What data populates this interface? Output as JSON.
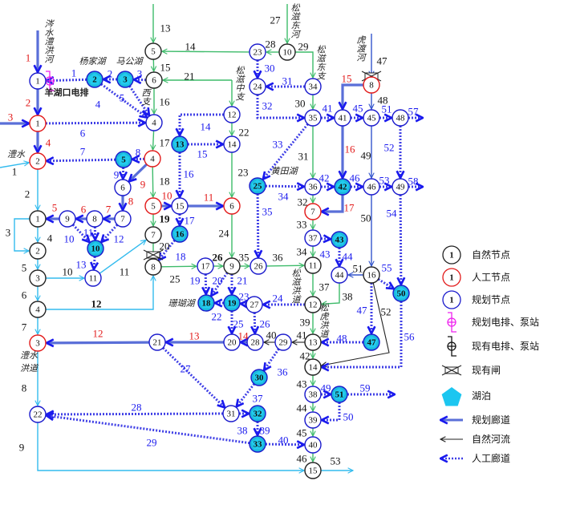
{
  "palette": {
    "red": "#e21a1a",
    "blue": "#1a1aee",
    "black": "#111111",
    "lake_fill": "#1cb8dc"
  },
  "styles": {
    "planned": {
      "color": "#5a6fd8",
      "meaning": "规划廊道"
    },
    "artificial": {
      "color": "#4040e6",
      "meaning": "人工廊道"
    },
    "green": {
      "color": "#3dbb6a",
      "meaning": "自然河流"
    },
    "cyan": {
      "color": "#33bbee",
      "meaning": "自然河流"
    },
    "black": {
      "color": "#222222",
      "meaning": "自然河流"
    },
    "darkblue": {
      "color": "#3355cc",
      "meaning": "自然河流"
    }
  },
  "node_kinds": {
    "natural": "#222222",
    "artificial": "#e21a1a",
    "planned": "#1a1acc"
  },
  "nodes": [
    {
      "label": "1",
      "kind": "planned"
    },
    {
      "label": "1",
      "kind": "artificial"
    },
    {
      "label": "2",
      "kind": "artificial"
    },
    {
      "label": "1",
      "kind": "natural"
    },
    {
      "label": "2",
      "kind": "natural"
    },
    {
      "label": "3",
      "kind": "natural"
    },
    {
      "label": "4",
      "kind": "natural"
    },
    {
      "label": "3",
      "kind": "artificial"
    },
    {
      "label": "22",
      "kind": "planned"
    },
    {
      "label": "2",
      "kind": "planned",
      "lake": true
    },
    {
      "label": "3",
      "kind": "planned",
      "lake": true
    },
    {
      "label": "5",
      "kind": "natural"
    },
    {
      "label": "6",
      "kind": "natural"
    },
    {
      "label": "4",
      "kind": "planned"
    },
    {
      "label": "4",
      "kind": "artificial"
    },
    {
      "label": "5",
      "kind": "planned",
      "lake": true
    },
    {
      "label": "6",
      "kind": "planned"
    },
    {
      "label": "7",
      "kind": "planned"
    },
    {
      "label": "8",
      "kind": "planned"
    },
    {
      "label": "9",
      "kind": "planned"
    },
    {
      "label": "10",
      "kind": "planned",
      "lake": true
    },
    {
      "label": "11",
      "kind": "planned"
    },
    {
      "label": "5",
      "kind": "artificial"
    },
    {
      "label": "7",
      "kind": "natural"
    },
    {
      "label": "8",
      "kind": "natural"
    },
    {
      "label": "15",
      "kind": "planned"
    },
    {
      "label": "6",
      "kind": "artificial"
    },
    {
      "label": "16",
      "kind": "planned",
      "lake": true
    },
    {
      "label": "13",
      "kind": "planned",
      "lake": true
    },
    {
      "label": "12",
      "kind": "planned"
    },
    {
      "label": "14",
      "kind": "planned"
    },
    {
      "label": "17",
      "kind": "planned"
    },
    {
      "label": "9",
      "kind": "natural"
    },
    {
      "label": "26",
      "kind": "planned"
    },
    {
      "label": "18",
      "kind": "planned",
      "lake": true
    },
    {
      "label": "19",
      "kind": "planned",
      "lake": true
    },
    {
      "label": "27",
      "kind": "planned"
    },
    {
      "label": "20",
      "kind": "planned"
    },
    {
      "label": "28",
      "kind": "planned"
    },
    {
      "label": "29",
      "kind": "planned"
    },
    {
      "label": "13",
      "kind": "natural"
    },
    {
      "label": "14",
      "kind": "natural"
    },
    {
      "label": "21",
      "kind": "planned"
    },
    {
      "label": "30",
      "kind": "planned",
      "lake": true
    },
    {
      "label": "31",
      "kind": "planned"
    },
    {
      "label": "32",
      "kind": "planned",
      "lake": true
    },
    {
      "label": "33",
      "kind": "planned",
      "lake": true
    },
    {
      "label": "38",
      "kind": "planned"
    },
    {
      "label": "51",
      "kind": "planned",
      "lake": true
    },
    {
      "label": "39",
      "kind": "planned"
    },
    {
      "label": "40",
      "kind": "planned"
    },
    {
      "label": "15",
      "kind": "natural"
    },
    {
      "label": "23",
      "kind": "planned"
    },
    {
      "label": "10",
      "kind": "natural"
    },
    {
      "label": "24",
      "kind": "planned"
    },
    {
      "label": "34",
      "kind": "planned"
    },
    {
      "label": "35",
      "kind": "planned"
    },
    {
      "label": "41",
      "kind": "planned"
    },
    {
      "label": "45",
      "kind": "planned"
    },
    {
      "label": "48",
      "kind": "planned"
    },
    {
      "label": "8",
      "kind": "artificial"
    },
    {
      "label": "25",
      "kind": "planned",
      "lake": true
    },
    {
      "label": "36",
      "kind": "planned"
    },
    {
      "label": "42",
      "kind": "planned",
      "lake": true
    },
    {
      "label": "46",
      "kind": "planned"
    },
    {
      "label": "49",
      "kind": "planned"
    },
    {
      "label": "7",
      "kind": "artificial"
    },
    {
      "label": "37",
      "kind": "planned"
    },
    {
      "label": "43",
      "kind": "planned",
      "lake": true
    },
    {
      "label": "11",
      "kind": "natural"
    },
    {
      "label": "44",
      "kind": "planned"
    },
    {
      "label": "16",
      "kind": "natural"
    },
    {
      "label": "50",
      "kind": "planned",
      "lake": true
    },
    {
      "label": "12",
      "kind": "natural"
    },
    {
      "label": "47",
      "kind": "planned",
      "lake": true
    }
  ],
  "edges": [
    {
      "label": "1",
      "style": "planned",
      "label_color": "red"
    },
    {
      "label": "2",
      "style": "planned",
      "label_color": "red"
    },
    {
      "label": "3",
      "style": "planned",
      "label_color": "red"
    },
    {
      "label": "4",
      "style": "planned",
      "label_color": "red"
    },
    {
      "label": "1",
      "style": "cyan",
      "label_color": "black"
    },
    {
      "label": "1",
      "style": "artificial",
      "label_color": "blue"
    },
    {
      "label": "2",
      "style": "artificial",
      "label_color": "blue"
    },
    {
      "label": "3",
      "style": "artificial",
      "label_color": "blue"
    },
    {
      "label": "4",
      "style": "artificial",
      "label_color": "blue"
    },
    {
      "label": "5",
      "style": "artificial",
      "label_color": "blue"
    },
    {
      "label": "6",
      "style": "artificial",
      "label_color": "blue"
    },
    {
      "label": "7",
      "style": "artificial",
      "label_color": "blue"
    },
    {
      "label": "8",
      "style": "artificial",
      "label_color": "blue"
    },
    {
      "label": "9",
      "style": "artificial",
      "label_color": "blue"
    },
    {
      "label": "9",
      "style": "planned",
      "label_color": "red"
    },
    {
      "label": "8",
      "style": "planned",
      "label_color": "red"
    },
    {
      "label": "7",
      "style": "planned",
      "label_color": "red"
    },
    {
      "label": "6",
      "style": "planned",
      "label_color": "red"
    },
    {
      "label": "5",
      "style": "planned",
      "label_color": "red"
    },
    {
      "label": "10",
      "style": "artificial",
      "label_color": "blue"
    },
    {
      "label": "11",
      "style": "artificial",
      "label_color": "blue"
    },
    {
      "label": "12",
      "style": "artificial",
      "label_color": "blue"
    },
    {
      "label": "13",
      "style": "artificial",
      "label_color": "blue"
    },
    {
      "label": "2",
      "style": "cyan",
      "label_color": "black"
    },
    {
      "label": "3",
      "style": "cyan",
      "label_color": "black"
    },
    {
      "label": "4",
      "style": "cyan",
      "label_color": "black"
    },
    {
      "label": "5",
      "style": "cyan",
      "label_color": "black"
    },
    {
      "label": "6",
      "style": "cyan",
      "label_color": "black"
    },
    {
      "label": "7",
      "style": "cyan",
      "label_color": "black"
    },
    {
      "label": "10",
      "style": "cyan",
      "label_color": "black"
    },
    {
      "label": "11",
      "style": "cyan",
      "label_color": "black"
    },
    {
      "label": "12",
      "style": "cyan",
      "label_color": "black"
    },
    {
      "label": "8",
      "style": "cyan",
      "label_color": "black"
    },
    {
      "label": "9",
      "style": "cyan",
      "label_color": "black"
    },
    {
      "label": "53",
      "style": "cyan",
      "label_color": "black"
    },
    {
      "label": "13",
      "style": "green",
      "label_color": "black"
    },
    {
      "label": "14",
      "style": "green",
      "label_color": "black"
    },
    {
      "label": "15",
      "style": "green",
      "label_color": "black"
    },
    {
      "label": "21",
      "style": "green",
      "label_color": "black"
    },
    {
      "label": "",
      "style": "green",
      "label_color": "black"
    },
    {
      "label": "16",
      "style": "green",
      "label_color": "black"
    },
    {
      "label": "17",
      "style": "green",
      "label_color": "black"
    },
    {
      "label": "18",
      "style": "green",
      "label_color": "black"
    },
    {
      "label": "19",
      "style": "green",
      "label_color": "black"
    },
    {
      "label": "20",
      "style": "green",
      "label_color": "black"
    },
    {
      "label": "25",
      "style": "green",
      "label_color": "black"
    },
    {
      "label": "26",
      "style": "green",
      "label_color": "black"
    },
    {
      "label": "35",
      "style": "green",
      "label_color": "black"
    },
    {
      "label": "36",
      "style": "green",
      "label_color": "black"
    },
    {
      "label": "24",
      "style": "green",
      "label_color": "black"
    },
    {
      "label": "23",
      "style": "green",
      "label_color": "black"
    },
    {
      "label": "22",
      "style": "green",
      "label_color": "black"
    },
    {
      "label": "10",
      "style": "planned",
      "label_color": "red"
    },
    {
      "label": "11",
      "style": "planned",
      "label_color": "red"
    },
    {
      "label": "14",
      "style": "artificial",
      "label_color": "blue"
    },
    {
      "label": "15",
      "style": "artificial",
      "label_color": "blue"
    },
    {
      "label": "16",
      "style": "artificial",
      "label_color": "blue"
    },
    {
      "label": "17",
      "style": "artificial",
      "label_color": "blue"
    },
    {
      "label": "18",
      "style": "artificial",
      "label_color": "blue"
    },
    {
      "label": "19",
      "style": "artificial",
      "label_color": "blue"
    },
    {
      "label": "20",
      "style": "artificial",
      "label_color": "blue"
    },
    {
      "label": "21",
      "style": "artificial",
      "label_color": "blue"
    },
    {
      "label": "22",
      "style": "artificial",
      "label_color": "blue"
    },
    {
      "label": "23",
      "style": "artificial",
      "label_color": "blue"
    },
    {
      "label": "24",
      "style": "artificial",
      "label_color": "blue"
    },
    {
      "label": "25",
      "style": "artificial",
      "label_color": "blue"
    },
    {
      "label": "26",
      "style": "artificial",
      "label_color": "blue"
    },
    {
      "label": "14",
      "style": "planned",
      "label_color": "red"
    },
    {
      "label": "13",
      "style": "planned",
      "label_color": "red"
    },
    {
      "label": "12",
      "style": "planned",
      "label_color": "red"
    },
    {
      "label": "40",
      "style": "black",
      "label_color": "black"
    },
    {
      "label": "41",
      "style": "black",
      "label_color": "black"
    },
    {
      "label": "27",
      "style": "artificial",
      "label_color": "blue"
    },
    {
      "label": "36",
      "style": "artificial",
      "label_color": "blue"
    },
    {
      "label": "37",
      "style": "artificial",
      "label_color": "blue"
    },
    {
      "label": "28",
      "style": "artificial",
      "label_color": "blue"
    },
    {
      "label": "29",
      "style": "artificial",
      "label_color": "blue"
    },
    {
      "label": "38",
      "style": "artificial",
      "label_color": "blue"
    },
    {
      "label": "39",
      "style": "artificial",
      "label_color": "blue"
    },
    {
      "label": "40",
      "style": "artificial",
      "label_color": "blue"
    },
    {
      "label": "42",
      "style": "green",
      "label_color": "black"
    },
    {
      "label": "43",
      "style": "green",
      "label_color": "black"
    },
    {
      "label": "44",
      "style": "green",
      "label_color": "black"
    },
    {
      "label": "45",
      "style": "green",
      "label_color": "black"
    },
    {
      "label": "46",
      "style": "green",
      "label_color": "black"
    },
    {
      "label": "49",
      "style": "artificial",
      "label_color": "blue"
    },
    {
      "label": "50",
      "style": "artificial",
      "label_color": "blue"
    },
    {
      "label": "59",
      "style": "artificial",
      "label_color": "blue"
    },
    {
      "label": "27",
      "style": "green",
      "label_color": "black"
    },
    {
      "label": "28",
      "style": "green",
      "label_color": "black"
    },
    {
      "label": "29",
      "style": "green",
      "label_color": "black"
    },
    {
      "label": "30",
      "style": "artificial",
      "label_color": "blue"
    },
    {
      "label": "31",
      "style": "artificial",
      "label_color": "blue"
    },
    {
      "label": "32",
      "style": "artificial",
      "label_color": "blue"
    },
    {
      "label": "30",
      "style": "green",
      "label_color": "black"
    },
    {
      "label": "31",
      "style": "green",
      "label_color": "black"
    },
    {
      "label": "33",
      "style": "artificial",
      "label_color": "blue"
    },
    {
      "label": "34",
      "style": "artificial",
      "label_color": "blue"
    },
    {
      "label": "35",
      "style": "artificial",
      "label_color": "blue"
    },
    {
      "label": "41",
      "style": "artificial",
      "label_color": "blue"
    },
    {
      "label": "45",
      "style": "artificial",
      "label_color": "blue"
    },
    {
      "label": "51",
      "style": "artificial",
      "label_color": "blue"
    },
    {
      "label": "57",
      "style": "artificial",
      "label_color": "blue"
    },
    {
      "label": "47",
      "style": "darkblue",
      "label_color": "black"
    },
    {
      "label": "48",
      "style": "darkblue",
      "label_color": "black"
    },
    {
      "label": "15",
      "style": "planned",
      "label_color": "red"
    },
    {
      "label": "16",
      "style": "planned",
      "label_color": "red"
    },
    {
      "label": "49",
      "style": "darkblue",
      "label_color": "black"
    },
    {
      "label": "52",
      "style": "artificial",
      "label_color": "blue"
    },
    {
      "label": "42",
      "style": "artificial",
      "label_color": "blue"
    },
    {
      "label": "46",
      "style": "artificial",
      "label_color": "blue"
    },
    {
      "label": "53",
      "style": "artificial",
      "label_color": "blue"
    },
    {
      "label": "58",
      "style": "artificial",
      "label_color": "blue"
    },
    {
      "label": "32",
      "style": "green",
      "label_color": "black"
    },
    {
      "label": "17",
      "style": "planned",
      "label_color": "red"
    },
    {
      "label": "33",
      "style": "green",
      "label_color": "black"
    },
    {
      "label": "43",
      "style": "artificial",
      "label_color": "blue"
    },
    {
      "label": "34",
      "style": "green",
      "label_color": "black"
    },
    {
      "label": "44",
      "style": "artificial",
      "label_color": "blue"
    },
    {
      "label": "50",
      "style": "darkblue",
      "label_color": "black"
    },
    {
      "label": "54",
      "style": "artificial",
      "label_color": "blue"
    },
    {
      "label": "51",
      "style": "darkblue",
      "label_color": "black"
    },
    {
      "label": "55",
      "style": "artificial",
      "label_color": "blue"
    },
    {
      "label": "37",
      "style": "green",
      "label_color": "black"
    },
    {
      "label": "38",
      "style": "green",
      "label_color": "black"
    },
    {
      "label": "39",
      "style": "green",
      "label_color": "black"
    },
    {
      "label": "47",
      "style": "artificial",
      "label_color": "blue"
    },
    {
      "label": "48",
      "style": "artificial",
      "label_color": "blue"
    },
    {
      "label": "52",
      "style": "black",
      "label_color": "black"
    },
    {
      "label": "56",
      "style": "artificial",
      "label_color": "blue"
    }
  ],
  "annotations": [
    {
      "text": "涔水澧洪河",
      "vertical": true
    },
    {
      "text": "杨家湖",
      "vertical": false
    },
    {
      "text": "马公湖",
      "vertical": false
    },
    {
      "text": "羊湖口电排",
      "vertical": false,
      "bold": true
    },
    {
      "text": "西支",
      "vertical": true
    },
    {
      "text": "澧水",
      "vertical": false
    },
    {
      "text": "澧水",
      "vertical": false
    },
    {
      "text": "洪道",
      "vertical": false
    },
    {
      "text": "松滋东河",
      "vertical": true
    },
    {
      "text": "松滋东支",
      "vertical": true
    },
    {
      "text": "松滋中支",
      "vertical": true
    },
    {
      "text": "虎渡河",
      "vertical": true
    },
    {
      "text": "黄田湖",
      "vertical": false
    },
    {
      "text": "珊瑚湖",
      "vertical": false
    },
    {
      "text": "松滋洪道",
      "vertical": true
    },
    {
      "text": "松虎洪道",
      "vertical": true
    }
  ],
  "legend": {
    "items": [
      {
        "symbol": "natural-node",
        "sample": "1",
        "label": "自然节点"
      },
      {
        "symbol": "artificial-node",
        "sample": "1",
        "label": "人工节点"
      },
      {
        "symbol": "planned-node",
        "sample": "1",
        "label": "规划节点"
      },
      {
        "symbol": "planned-pump",
        "label": "规划电排、泵站",
        "color": "#ee22ee"
      },
      {
        "symbol": "existing-pump",
        "label": "现有电排、泵站",
        "color": "#111111"
      },
      {
        "symbol": "existing-gate",
        "label": "现有闸"
      },
      {
        "symbol": "lake",
        "label": "湖泊",
        "color": "#1cc6f0"
      },
      {
        "symbol": "planned-corridor",
        "label": "规划廊道"
      },
      {
        "symbol": "natural-river",
        "label": "自然河流"
      },
      {
        "symbol": "artificial-corridor",
        "label": "人工廊道"
      }
    ]
  }
}
